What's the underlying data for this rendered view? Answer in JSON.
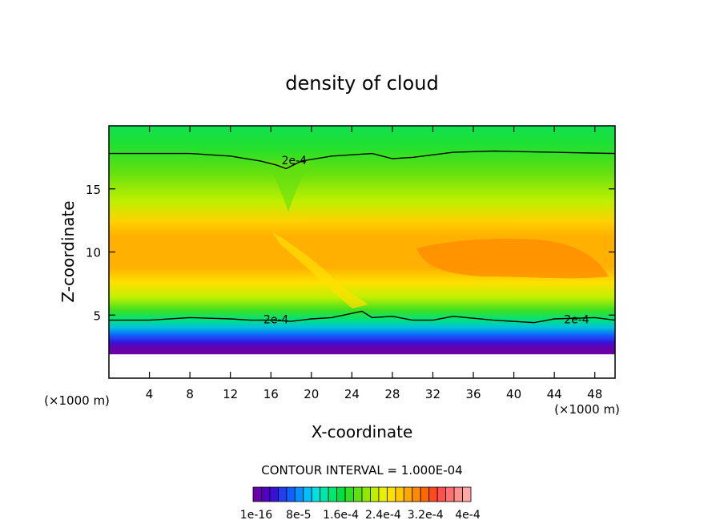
{
  "chart_data": {
    "type": "heatmap",
    "title": "density of cloud",
    "xlabel": "X-coordinate",
    "ylabel": "Z-coordinate",
    "x_unit_label": "(×1000 m)",
    "y_unit_label": "(×1000 m)",
    "xlim": [
      0,
      50
    ],
    "ylim": [
      0,
      20
    ],
    "x_ticks": [
      4,
      8,
      12,
      16,
      20,
      24,
      28,
      32,
      36,
      40,
      44,
      48
    ],
    "y_ticks": [
      5,
      10,
      15
    ],
    "contour_interval_text": "CONTOUR INTERVAL = 1.000E-04",
    "contour_label": "2e-4",
    "contour_label_positions": [
      [
        18.3,
        17.2
      ],
      [
        16.5,
        4.6
      ],
      [
        46.2,
        4.6
      ]
    ],
    "colorbar_labels": [
      "1e-16",
      "8e-5",
      "1.6e-4",
      "2.4e-4",
      "3.2e-4",
      "4e-4"
    ],
    "colorbar_colors": [
      "#6a00a8",
      "#5200c0",
      "#3a10d8",
      "#2040f0",
      "#1060ff",
      "#0090ff",
      "#00c0ff",
      "#00e0e0",
      "#00e8a8",
      "#00e870",
      "#00e040",
      "#30e020",
      "#60e010",
      "#90e800",
      "#c0f000",
      "#e8f000",
      "#ffe000",
      "#ffc800",
      "#ffa800",
      "#ff8a00",
      "#ff6800",
      "#ff4a20",
      "#ff5050",
      "#ff7070",
      "#ff9090",
      "#ffa8a8"
    ],
    "contour_2e4_upper": [
      [
        0,
        17.8
      ],
      [
        8,
        17.8
      ],
      [
        12,
        17.6
      ],
      [
        15,
        17.2
      ],
      [
        16.5,
        16.9
      ],
      [
        17.5,
        16.6
      ],
      [
        19,
        17.2
      ],
      [
        22,
        17.6
      ],
      [
        26,
        17.8
      ],
      [
        28,
        17.4
      ],
      [
        30,
        17.5
      ],
      [
        34,
        17.9
      ],
      [
        38,
        18.0
      ],
      [
        44,
        17.9
      ],
      [
        50,
        17.8
      ]
    ],
    "contour_2e4_lower": [
      [
        0,
        4.6
      ],
      [
        4,
        4.6
      ],
      [
        8,
        4.8
      ],
      [
        12,
        4.7
      ],
      [
        14,
        4.6
      ],
      [
        16,
        4.6
      ],
      [
        18,
        4.5
      ],
      [
        20,
        4.7
      ],
      [
        22,
        4.8
      ],
      [
        25,
        5.3
      ],
      [
        26,
        4.8
      ],
      [
        28,
        4.9
      ],
      [
        30,
        4.6
      ],
      [
        32,
        4.6
      ],
      [
        34,
        4.9
      ],
      [
        38,
        4.6
      ],
      [
        42,
        4.4
      ],
      [
        44,
        4.7
      ],
      [
        48,
        4.8
      ],
      [
        50,
        4.6
      ]
    ]
  }
}
